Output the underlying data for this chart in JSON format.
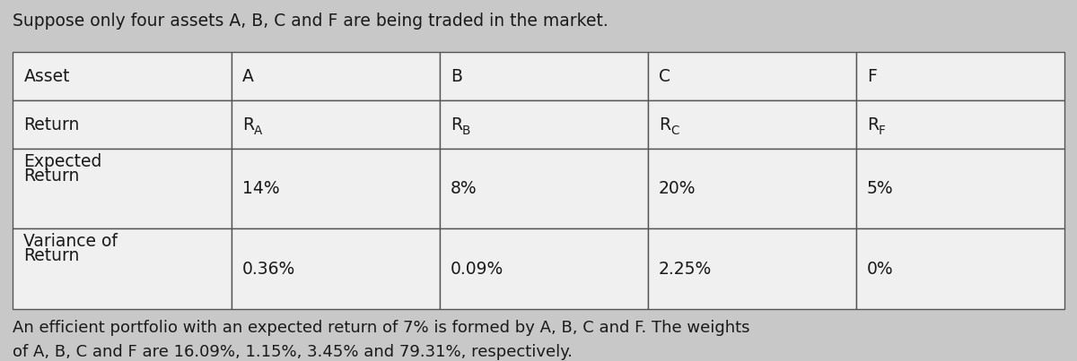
{
  "title": "Suppose only four assets A, B, C and F are being traded in the market.",
  "title_fontsize": 13.5,
  "footer_line1": "An efficient portfolio with an expected return of 7% is formed by A, B, C and F. The weights",
  "footer_line2": "of A, B, C and F are 16.09%, 1.15%, 3.45% and 79.31%, respectively.",
  "footer_fontsize": 13.0,
  "bg_color": "#c8c8c8",
  "cell_bg": "#f0f0f0",
  "border_color": "#555555",
  "text_color": "#1a1a1a",
  "table_font_size": 13.5,
  "fig_width": 12.0,
  "fig_height": 4.03
}
